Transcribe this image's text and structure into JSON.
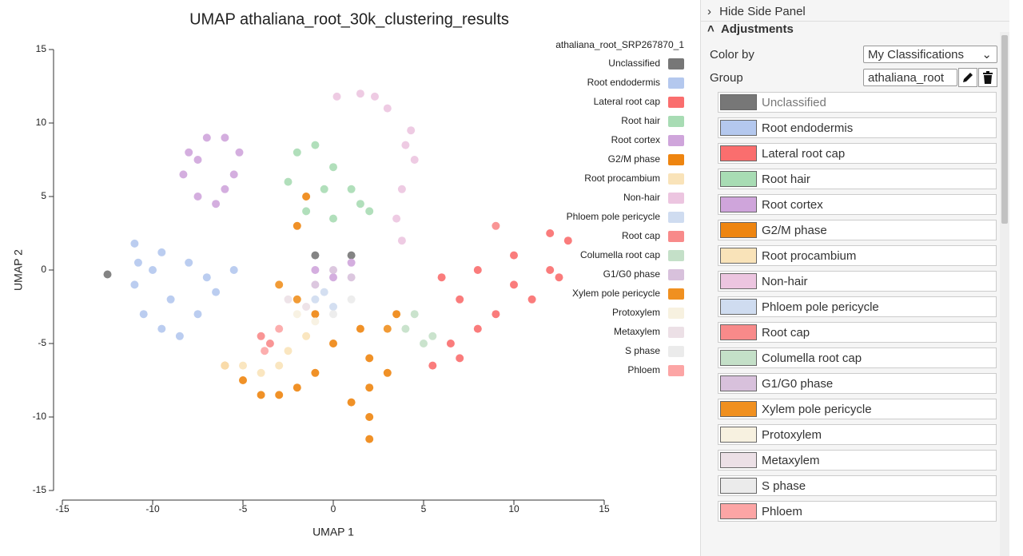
{
  "chart_data": {
    "type": "scatter",
    "title": "UMAP athaliana_root_30k_clustering_results",
    "x_label": "UMAP 1",
    "y_label": "UMAP 2",
    "legend_title": "athaliana_root_SRP267870_1",
    "xlim": [
      -15,
      15
    ],
    "ylim": [
      -15,
      15
    ],
    "xticks": [
      -15,
      -10,
      -5,
      0,
      5,
      10,
      15
    ],
    "yticks": [
      -15,
      -10,
      -5,
      0,
      5,
      10,
      15
    ],
    "series": [
      {
        "name": "Unclassified",
        "color": "#777777",
        "x": [
          -12.5,
          -1,
          1
        ],
        "y": [
          -0.3,
          1,
          1
        ]
      },
      {
        "name": "Root endodermis",
        "color": "#b4c8ee",
        "x": [
          -11,
          -11,
          -10.5,
          -9.5,
          -8.5,
          -7.5,
          -6.5,
          -5.5,
          -10,
          -9,
          -8,
          -7,
          -10.8,
          -9.5
        ],
        "y": [
          1.8,
          -1,
          -3,
          -4,
          -4.5,
          -3,
          -1.5,
          0,
          0,
          -2,
          0.5,
          -0.5,
          0.5,
          1.2
        ]
      },
      {
        "name": "Lateral root cap",
        "color": "#fa6e6e",
        "x": [
          12,
          13,
          12,
          10,
          8,
          6,
          7,
          9,
          10,
          11,
          8,
          6.5,
          5.5,
          7,
          12.5
        ],
        "y": [
          2.5,
          2,
          0,
          1,
          0,
          -0.5,
          -2,
          -3,
          -1,
          -2,
          -4,
          -5,
          -6.5,
          -6,
          -0.5
        ]
      },
      {
        "name": "Root hair",
        "color": "#a8dcb4",
        "x": [
          -2,
          -1,
          0,
          1,
          2,
          -2.5,
          -1.5,
          0,
          1.5,
          -0.5
        ],
        "y": [
          8,
          8.5,
          7,
          5.5,
          4,
          6,
          4,
          3.5,
          4.5,
          5.5
        ]
      },
      {
        "name": "Root cortex",
        "color": "#cfa5db",
        "x": [
          -8,
          -7,
          -6,
          -5.2,
          -5.5,
          -6.5,
          -7.5,
          -8.3,
          -7.5,
          -6,
          -1,
          0,
          1
        ],
        "y": [
          8,
          9,
          9,
          8,
          6.5,
          4.5,
          5,
          6.5,
          7.5,
          5.5,
          0,
          -0.5,
          0.5
        ]
      },
      {
        "name": "G2/M phase",
        "color": "#ee8510",
        "x": [
          -6,
          -5,
          -4,
          -3,
          -2,
          -1,
          0,
          1.5,
          2,
          2,
          2,
          2,
          1,
          3,
          3.5,
          -1,
          -2,
          -1.5
        ],
        "y": [
          -6.5,
          -7.5,
          -8.5,
          -8.5,
          -8,
          -7,
          -5,
          -4,
          -6,
          -8,
          -10,
          -11.5,
          -9,
          -7,
          -3,
          -3,
          3,
          5
        ]
      },
      {
        "name": "Root procambium",
        "color": "#f9e3b9",
        "x": [
          -6,
          -5,
          -4,
          -3,
          -2.5,
          -1.5
        ],
        "y": [
          -6.5,
          -6.5,
          -7,
          -6.5,
          -5.5,
          -4.5
        ]
      },
      {
        "name": "Non-hair",
        "color": "#ecc5e0",
        "x": [
          0.2,
          1.5,
          3,
          4.3,
          4.5,
          3.8,
          3.5,
          3.8,
          2.3,
          4
        ],
        "y": [
          11.8,
          12,
          11,
          9.5,
          7.5,
          5.5,
          3.5,
          2,
          11.8,
          8.5
        ]
      },
      {
        "name": "Phloem pole pericycle",
        "color": "#cfdcf0",
        "x": [
          -1,
          -0.5,
          0
        ],
        "y": [
          -2,
          -1.5,
          -2.5
        ]
      },
      {
        "name": "Root cap",
        "color": "#f88a8a",
        "x": [
          -4,
          -3.5,
          9
        ],
        "y": [
          -4.5,
          -5,
          3
        ]
      },
      {
        "name": "Columella root cap",
        "color": "#c4e0c8",
        "x": [
          4,
          5,
          4.5,
          5.5
        ],
        "y": [
          -4,
          -5,
          -3,
          -4.5
        ]
      },
      {
        "name": "G1/G0 phase",
        "color": "#d8c1dc",
        "x": [
          -1,
          0,
          1
        ],
        "y": [
          -1,
          0,
          -0.5
        ]
      },
      {
        "name": "Xylem pole pericycle",
        "color": "#f09020",
        "x": [
          -3,
          -2,
          3
        ],
        "y": [
          -1,
          -2,
          -4
        ]
      },
      {
        "name": "Protoxylem",
        "color": "#f7f1e0",
        "x": [
          -2,
          -1
        ],
        "y": [
          -3,
          -3.5
        ]
      },
      {
        "name": "Metaxylem",
        "color": "#ece0e6",
        "x": [
          -2.5,
          -1.5
        ],
        "y": [
          -2,
          -2.5
        ]
      },
      {
        "name": "S phase",
        "color": "#ebebeb",
        "x": [
          0,
          1
        ],
        "y": [
          -3,
          -2
        ]
      },
      {
        "name": "Phloem",
        "color": "#fca5a5",
        "x": [
          -3,
          -3.8
        ],
        "y": [
          -4,
          -5.5
        ]
      }
    ]
  },
  "side_panel": {
    "toggle": "Hide Side Panel",
    "section": "Adjustments",
    "color_by_label": "Color by",
    "color_by_value": "My Classifications",
    "group_label": "Group",
    "group_value": "athaliana_root"
  }
}
